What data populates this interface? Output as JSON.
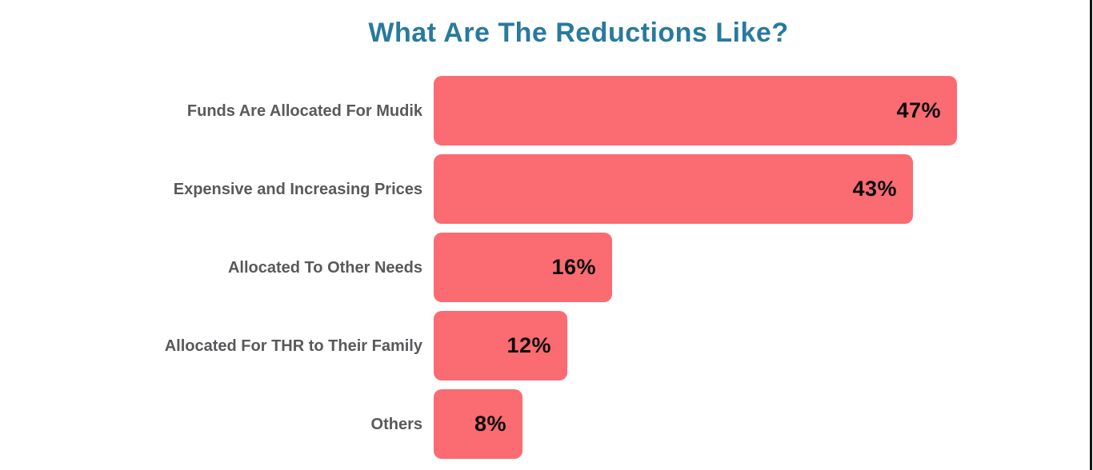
{
  "chart_data": {
    "type": "bar",
    "orientation": "horizontal",
    "title": "What Are The Reductions Like?",
    "categories": [
      "Funds Are Allocated For Mudik",
      "Expensive and Increasing Prices",
      "Allocated To Other Needs",
      "Allocated For THR to Their Family",
      "Others"
    ],
    "values": [
      47,
      43,
      16,
      12,
      8
    ],
    "value_labels": [
      "47%",
      "43%",
      "16%",
      "12%",
      "8%"
    ],
    "unit": "%",
    "xlim": [
      0,
      59
    ],
    "grid": false,
    "legend": false,
    "colors": {
      "bar": "#FB6B72",
      "title": "#287A9E",
      "category_label": "#58595B",
      "value_label": "#0B0B0B",
      "background": "#FFFFFF",
      "edge_line": "#141414"
    }
  }
}
